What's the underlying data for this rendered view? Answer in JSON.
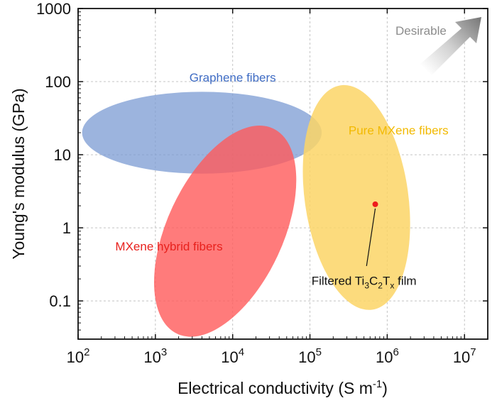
{
  "chart_data": {
    "type": "scatter",
    "xscale": "log",
    "yscale": "log",
    "xlim": [
      100,
      20000000
    ],
    "ylim": [
      0.03,
      1000
    ],
    "xlabel": "Electrical conductivity (S m",
    "xlabel_sup": "-1",
    "xlabel_close": ")",
    "ylabel": "Young's modulus (GPa)",
    "x_ticks": [
      {
        "value": 100,
        "base": "10",
        "exp": "2"
      },
      {
        "value": 1000,
        "base": "10",
        "exp": "3"
      },
      {
        "value": 10000,
        "base": "10",
        "exp": "4"
      },
      {
        "value": 100000,
        "base": "10",
        "exp": "5"
      },
      {
        "value": 1000000,
        "base": "10",
        "exp": "6"
      },
      {
        "value": 10000000,
        "base": "10",
        "exp": "7"
      }
    ],
    "y_ticks": [
      {
        "value": 0.1,
        "label": "0.1"
      },
      {
        "value": 1,
        "label": "1"
      },
      {
        "value": 10,
        "label": "10"
      },
      {
        "value": 100,
        "label": "100"
      },
      {
        "value": 1000,
        "label": "1000"
      }
    ],
    "grid": true,
    "regions": [
      {
        "name": "Graphene fibers",
        "color": "#7b9bd3",
        "opacity": 0.75,
        "label_color": "#3f6cc4",
        "center": [
          4000,
          20
        ],
        "half_width_decades": 1.55,
        "half_height_decades": 0.56,
        "rotation_deg": 0,
        "label_pos": [
          10000,
          100
        ]
      },
      {
        "name": "Pure MXene fibers",
        "color": "#fcd566",
        "opacity": 0.85,
        "label_color": "#f2b900",
        "center": [
          400000,
          2.6
        ],
        "half_width_decades": 0.67,
        "half_height_decades": 1.55,
        "rotation_deg": -8,
        "label_pos": [
          1400000,
          19
        ]
      },
      {
        "name": "MXene hybrid fibers",
        "color": "#ff5a5a",
        "opacity": 0.8,
        "label_color": "#e8211d",
        "center": [
          8000,
          0.9
        ],
        "half_width_decades": 0.75,
        "half_height_decades": 1.55,
        "rotation_deg": 25,
        "label_pos": [
          1500,
          0.49
        ]
      }
    ],
    "points": [
      {
        "name": "Filtered Ti3C2Tx film",
        "x": 700000,
        "y": 2.1,
        "color": "#ee1c1c"
      }
    ],
    "annotation": {
      "text_main": "Filtered Ti",
      "sub1": "3",
      "text_mid1": "C",
      "sub2": "2",
      "text_mid2": "T",
      "sub3": "x",
      "text_end": " film",
      "text_pos": [
        500000,
        0.165
      ],
      "arrow_from": [
        540000,
        0.3
      ],
      "arrow_to": [
        700000,
        2.1
      ]
    },
    "desirable_label": "Desirable",
    "desirable_color": "#8c8c8c"
  }
}
